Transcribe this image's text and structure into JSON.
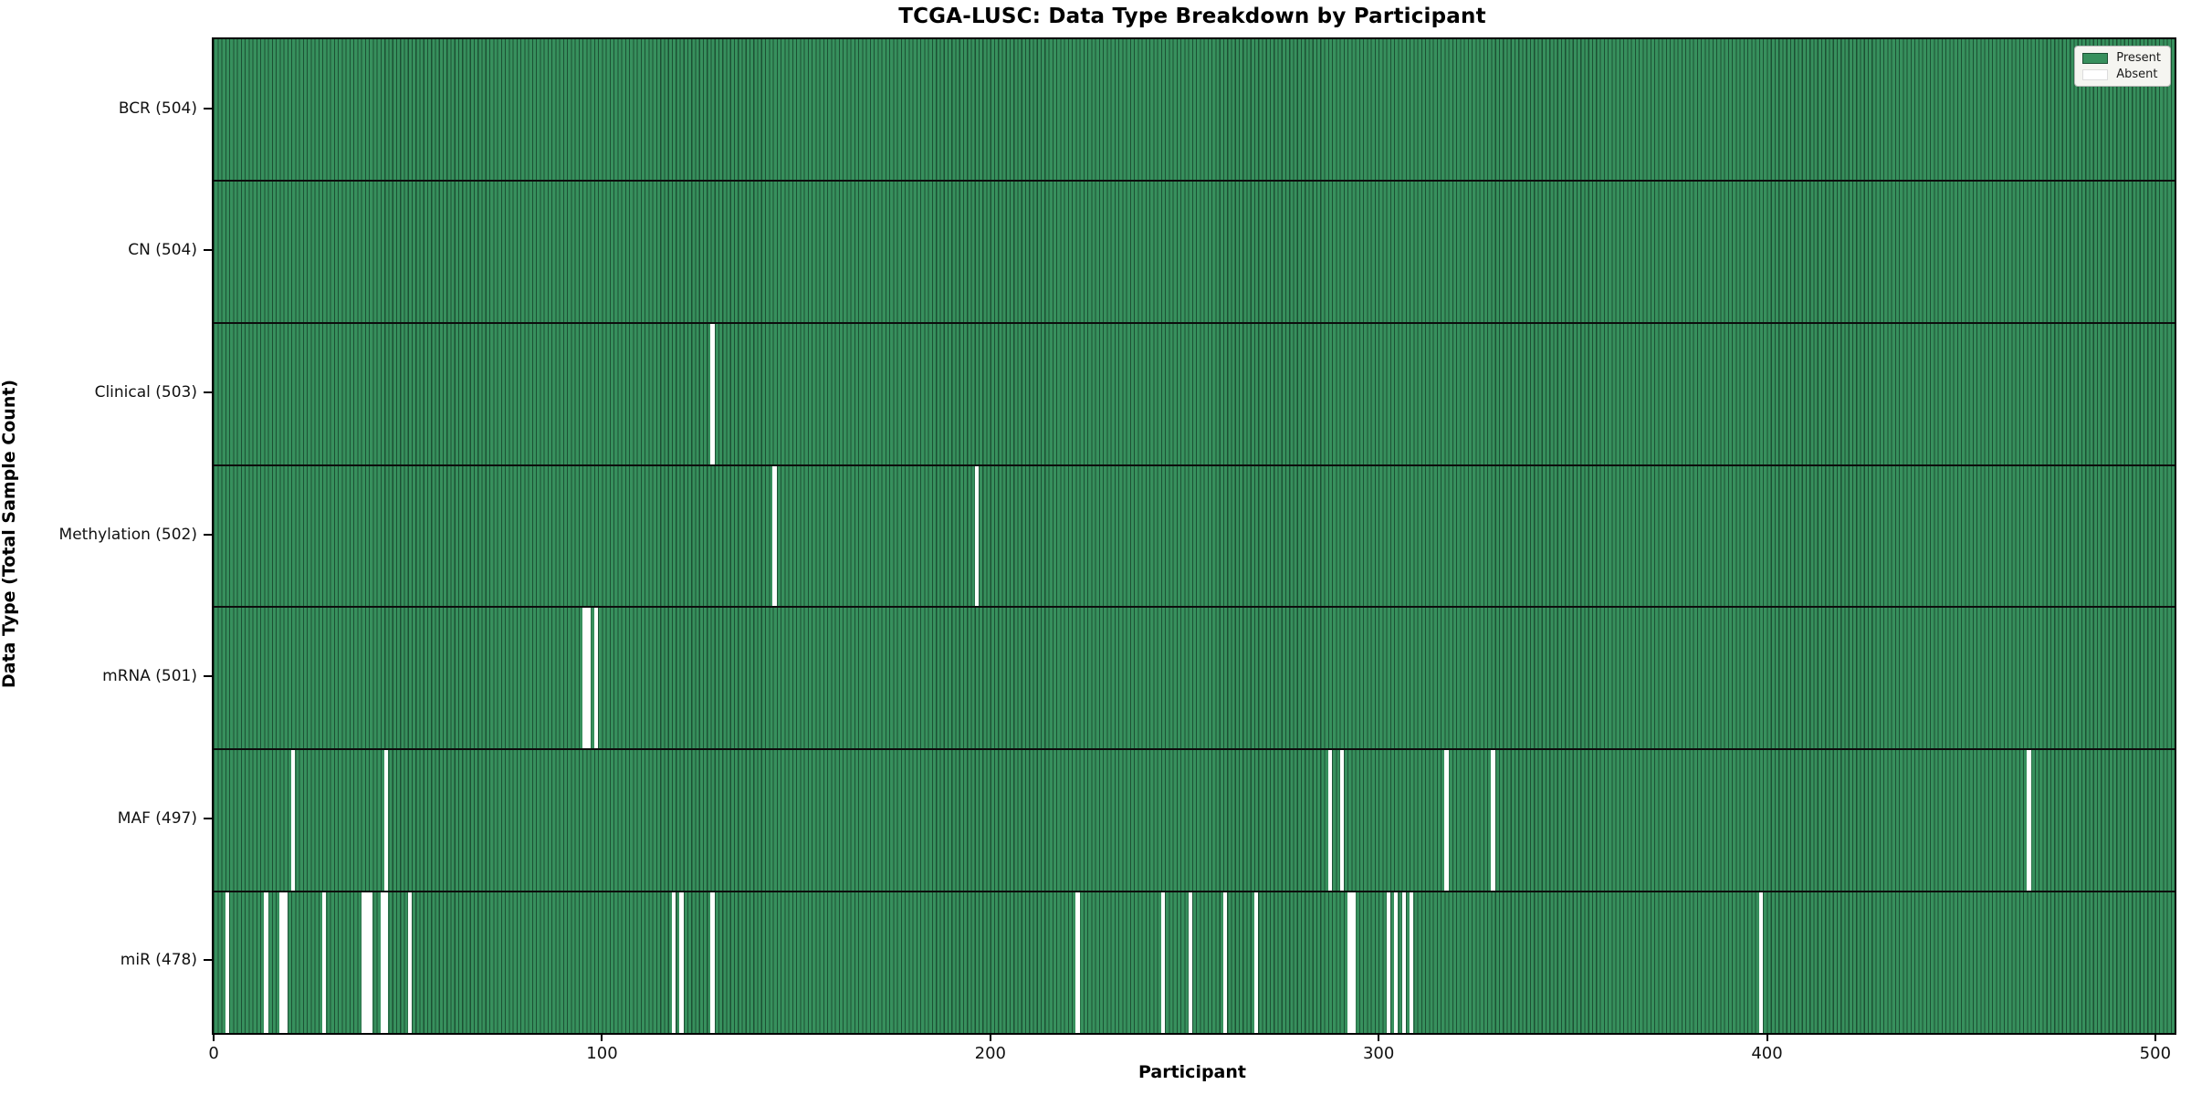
{
  "chart_data": {
    "type": "heatmap",
    "title": "TCGA-LUSC: Data Type Breakdown by Participant",
    "xlabel": "Participant",
    "ylabel": "Data Type (Total Sample Count)",
    "x_ticks": [
      0,
      100,
      200,
      300,
      400,
      500
    ],
    "x_range": [
      -0.5,
      504.5
    ],
    "n_participants": 504,
    "grid": false,
    "legend_position": "upper right",
    "rows": [
      {
        "label": "BCR (504)",
        "data_type": "BCR",
        "present_count": 504,
        "absent_participants": []
      },
      {
        "label": "CN (504)",
        "data_type": "CN",
        "present_count": 504,
        "absent_participants": []
      },
      {
        "label": "Clinical (503)",
        "data_type": "Clinical",
        "present_count": 503,
        "absent_participants": [
          128
        ]
      },
      {
        "label": "Methylation (502)",
        "data_type": "Methylation",
        "present_count": 502,
        "absent_participants": [
          144,
          196
        ]
      },
      {
        "label": "mRNA (501)",
        "data_type": "mRNA",
        "present_count": 501,
        "absent_participants": [
          95,
          96,
          98
        ]
      },
      {
        "label": "MAF (497)",
        "data_type": "MAF",
        "present_count": 497,
        "absent_participants": [
          20,
          44,
          287,
          290,
          317,
          329,
          467
        ]
      },
      {
        "label": "miR (478)",
        "data_type": "miR",
        "present_count": 478,
        "absent_participants": [
          3,
          13,
          17,
          18,
          28,
          38,
          39,
          40,
          43,
          44,
          50,
          118,
          120,
          128,
          222,
          244,
          251,
          260,
          268,
          292,
          293,
          302,
          304,
          306,
          308,
          398
        ]
      }
    ],
    "legend": {
      "present_label": "Present",
      "absent_label": "Absent"
    },
    "colors": {
      "present": "#37905d",
      "bar_edge": "#1c5134",
      "absent": "#ffffff",
      "separator": "#0d0d0d",
      "legend_bg": "#f5f5f1"
    }
  }
}
